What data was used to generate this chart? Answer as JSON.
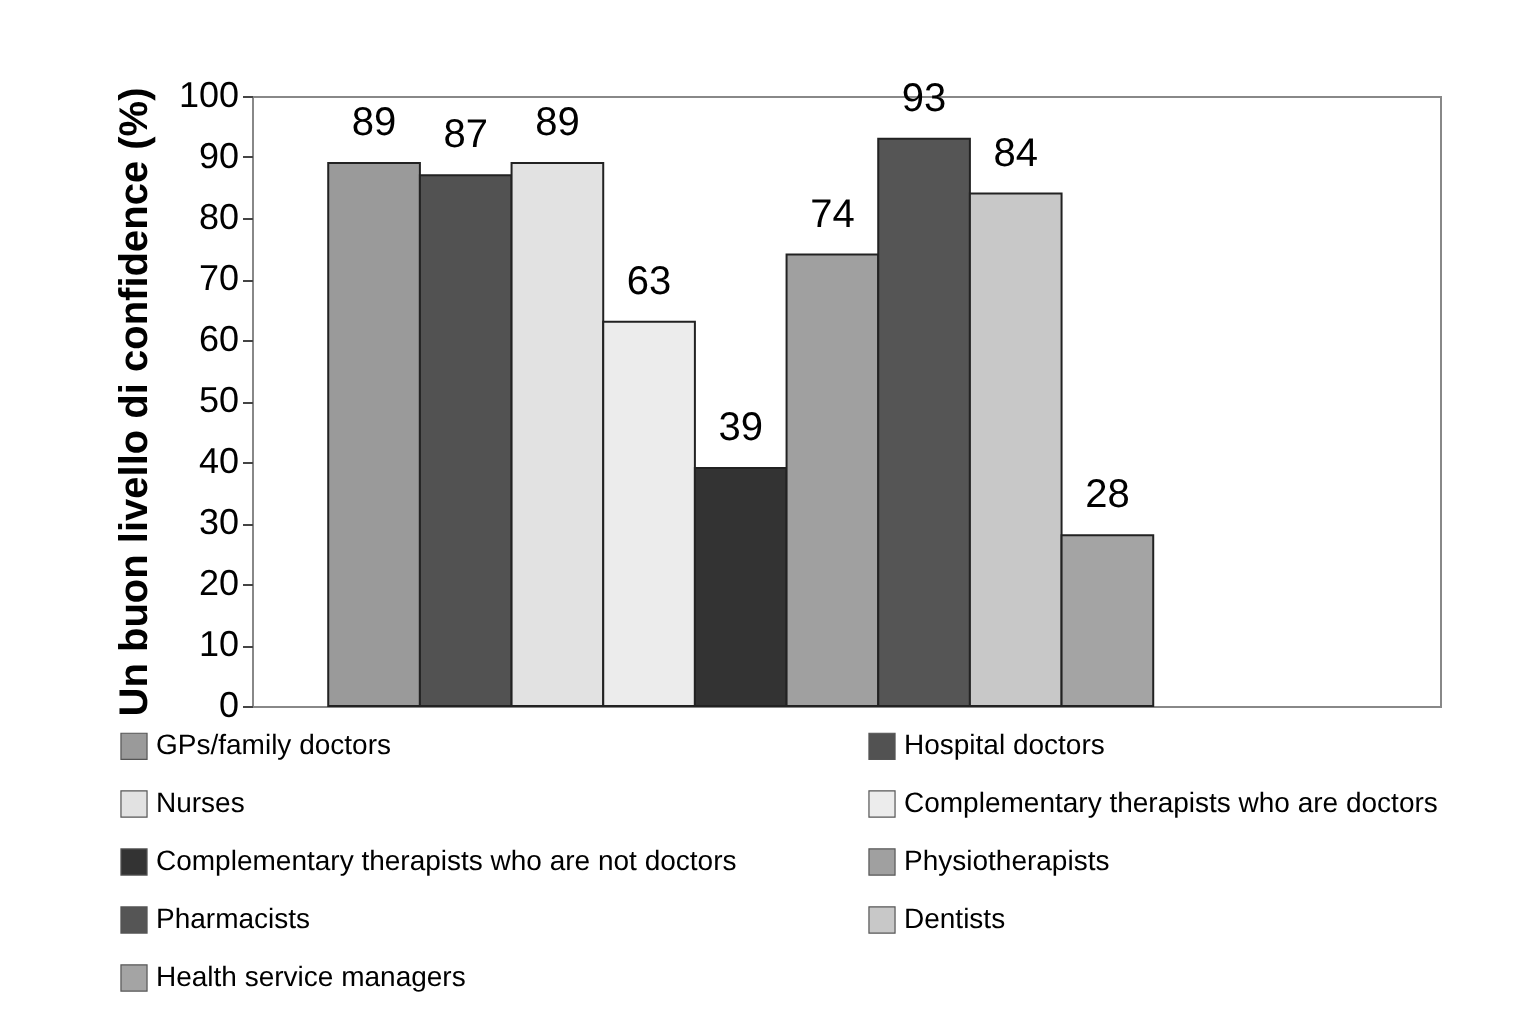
{
  "chart_data": {
    "type": "bar",
    "ylabel": "Un buon livello di confidence (%)",
    "categories": [
      null
    ],
    "series": [
      {
        "name": "GPs/family doctors",
        "color": "#9a9a9a",
        "values": [
          89
        ]
      },
      {
        "name": "Hospital doctors",
        "color": "#525252",
        "values": [
          87
        ]
      },
      {
        "name": "Nurses",
        "color": "#e2e2e2",
        "values": [
          89
        ]
      },
      {
        "name": "Complementary therapists who are doctors",
        "color": "#ececec",
        "values": [
          63
        ]
      },
      {
        "name": "Complementary therapists who are not doctors",
        "color": "#333333",
        "values": [
          39
        ]
      },
      {
        "name": "Physiotherapists",
        "color": "#a0a0a0",
        "values": [
          74
        ]
      },
      {
        "name": "Pharmacists",
        "color": "#555555",
        "values": [
          93
        ]
      },
      {
        "name": "Dentists",
        "color": "#c8c8c8",
        "values": [
          84
        ]
      },
      {
        "name": "Health service managers",
        "color": "#a4a4a4",
        "values": [
          28
        ]
      }
    ],
    "ylim": [
      0,
      100
    ],
    "yticks": [
      0,
      10,
      20,
      30,
      40,
      50,
      60,
      70,
      80,
      90,
      100
    ],
    "data_labels": true,
    "legend": "bottom",
    "tick_labels": "y",
    "grid": false
  }
}
